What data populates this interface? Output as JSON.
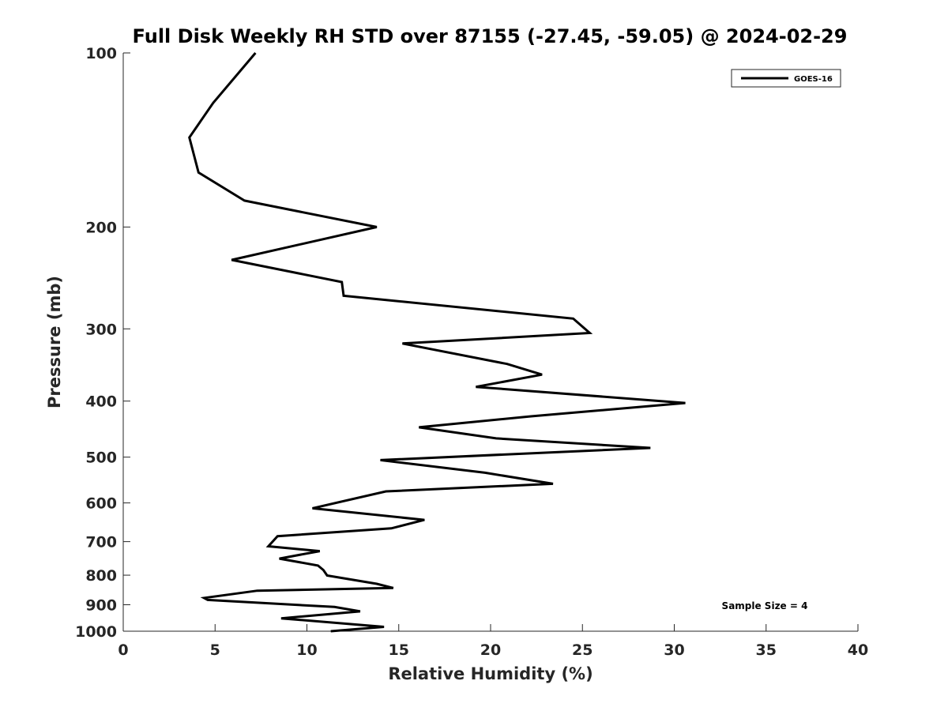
{
  "chart_data": {
    "type": "line",
    "title": "Full Disk Weekly RH STD over 87155 (-27.45, -59.05) @ 2024-02-29",
    "xlabel": "Relative Humidity (%)",
    "ylabel": "Pressure (mb)",
    "xlim": [
      0,
      40
    ],
    "ylim": [
      100,
      1000
    ],
    "yscale": "log",
    "y_reversed": true,
    "grid": false,
    "xticks": [
      0,
      5,
      10,
      15,
      20,
      25,
      30,
      35,
      40
    ],
    "yticks": [
      100,
      200,
      300,
      400,
      500,
      600,
      700,
      800,
      900,
      1000
    ],
    "legend": {
      "position": "top-right",
      "entries": [
        "GOES-16"
      ]
    },
    "annotation": "Sample Size = 4",
    "series": [
      {
        "name": "GOES-16",
        "color": "#000000",
        "x": [
          7.2,
          4.9,
          3.6,
          4.1,
          6.6,
          13.8,
          5.9,
          11.9,
          12.0,
          24.5,
          25.4,
          15.2,
          20.9,
          22.8,
          19.2,
          30.6,
          22.2,
          16.1,
          20.3,
          28.7,
          14.0,
          19.7,
          23.4,
          14.3,
          10.3,
          16.4,
          14.6,
          8.4,
          7.9,
          10.7,
          8.5,
          10.6,
          10.9,
          11.1,
          13.8,
          14.7,
          7.3,
          4.4,
          4.6,
          11.5,
          12.9,
          8.6,
          14.2,
          11.3
        ],
        "y": [
          100,
          122,
          140,
          161,
          180,
          200,
          228,
          249,
          263,
          288,
          305,
          318,
          345,
          360,
          378,
          403,
          425,
          444,
          464,
          482,
          506,
          532,
          556,
          573,
          613,
          642,
          664,
          685,
          713,
          727,
          749,
          770,
          784,
          801,
          828,
          842,
          851,
          876,
          883,
          908,
          924,
          950,
          983,
          1000
        ]
      }
    ]
  }
}
